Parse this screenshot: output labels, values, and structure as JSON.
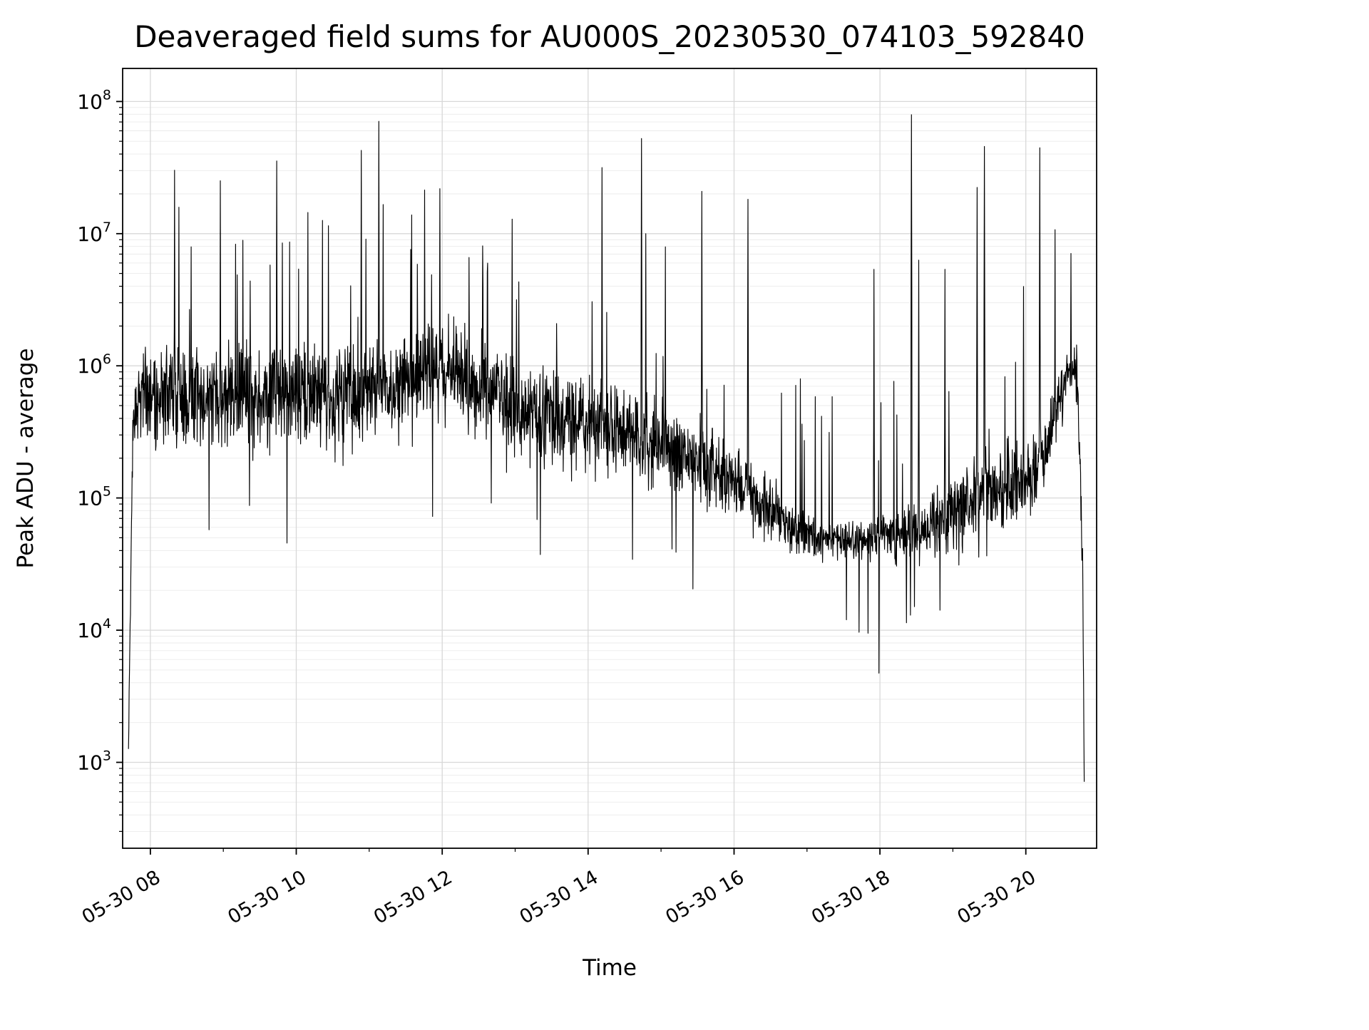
{
  "chart_data": {
    "type": "line",
    "title": "Deaveraged field sums for AU000S_20230530_074103_592840",
    "xlabel": "Time",
    "ylabel": "Peak ADU - average",
    "y_scale": "log10",
    "x_unit": "hours of day on 2023-05-30",
    "xlim": [
      7.62,
      20.97
    ],
    "ylim_log10": [
      2.35,
      8.25
    ],
    "grid": "both-major-and-minor",
    "legend": "none",
    "line_color": "#000000",
    "grid_major_color": "#d8d8d8",
    "grid_minor_color": "#ebebeb",
    "background": "#ffffff",
    "x_ticks": [
      {
        "value": 8,
        "label": "05-30 08"
      },
      {
        "value": 10,
        "label": "05-30 10"
      },
      {
        "value": 12,
        "label": "05-30 12"
      },
      {
        "value": 14,
        "label": "05-30 14"
      },
      {
        "value": 16,
        "label": "05-30 16"
      },
      {
        "value": 18,
        "label": "05-30 18"
      },
      {
        "value": 20,
        "label": "05-30 20"
      }
    ],
    "y_ticks": [
      {
        "base": "10",
        "exp": "3"
      },
      {
        "base": "10",
        "exp": "4"
      },
      {
        "base": "10",
        "exp": "5"
      },
      {
        "base": "10",
        "exp": "6"
      },
      {
        "base": "10",
        "exp": "7"
      },
      {
        "base": "10",
        "exp": "8"
      }
    ],
    "series": {
      "name": "deaveraged-field-sums",
      "description": "dense noisy time series; values synthesized from trend envelope (t_hours, log10_median, log10_spread) plus explicit spike events (t_hours, log10_value)",
      "points_per_hour": 220,
      "trend_log10": [
        [
          7.7,
          3.1,
          0.04
        ],
        [
          7.76,
          5.6,
          0.18
        ],
        [
          7.82,
          5.8,
          0.26
        ],
        [
          8.2,
          5.8,
          0.32
        ],
        [
          9.0,
          5.73,
          0.33
        ],
        [
          10.0,
          5.76,
          0.31
        ],
        [
          10.8,
          5.79,
          0.31
        ],
        [
          11.4,
          5.86,
          0.3
        ],
        [
          11.95,
          5.97,
          0.26
        ],
        [
          12.4,
          5.88,
          0.28
        ],
        [
          12.9,
          5.74,
          0.3
        ],
        [
          13.3,
          5.62,
          0.29
        ],
        [
          13.9,
          5.57,
          0.26
        ],
        [
          14.4,
          5.51,
          0.26
        ],
        [
          14.95,
          5.4,
          0.24
        ],
        [
          15.45,
          5.27,
          0.24
        ],
        [
          15.95,
          5.13,
          0.22
        ],
        [
          16.35,
          5.0,
          0.21
        ],
        [
          16.75,
          4.78,
          0.15
        ],
        [
          17.15,
          4.7,
          0.12
        ],
        [
          17.65,
          4.68,
          0.12
        ],
        [
          18.15,
          4.71,
          0.15
        ],
        [
          18.6,
          4.76,
          0.19
        ],
        [
          19.0,
          4.88,
          0.23
        ],
        [
          19.4,
          5.05,
          0.25
        ],
        [
          19.8,
          5.1,
          0.26
        ],
        [
          20.1,
          5.17,
          0.24
        ],
        [
          20.38,
          5.58,
          0.2
        ],
        [
          20.58,
          5.97,
          0.16
        ],
        [
          20.7,
          5.92,
          0.22
        ],
        [
          20.78,
          4.5,
          0.1
        ],
        [
          20.8,
          2.85,
          0.04
        ]
      ],
      "spikes_log10": [
        [
          8.33,
          7.48
        ],
        [
          8.39,
          7.2
        ],
        [
          8.56,
          6.9
        ],
        [
          8.96,
          7.4
        ],
        [
          9.17,
          6.92
        ],
        [
          9.27,
          6.95
        ],
        [
          9.73,
          7.55
        ],
        [
          9.81,
          6.93
        ],
        [
          10.16,
          7.16
        ],
        [
          10.36,
          7.1
        ],
        [
          10.44,
          7.06
        ],
        [
          10.89,
          7.63
        ],
        [
          11.13,
          7.85
        ],
        [
          11.19,
          7.22
        ],
        [
          11.57,
          6.88
        ],
        [
          11.76,
          7.33
        ],
        [
          11.97,
          7.34
        ],
        [
          12.37,
          6.82
        ],
        [
          12.96,
          7.11
        ],
        [
          13.02,
          6.5
        ],
        [
          13.57,
          6.32
        ],
        [
          14.19,
          7.5
        ],
        [
          14.73,
          7.72
        ],
        [
          14.79,
          7.0
        ],
        [
          15.06,
          6.9
        ],
        [
          15.56,
          7.32
        ],
        [
          16.19,
          7.26
        ],
        [
          17.92,
          6.73
        ],
        [
          18.43,
          7.9
        ],
        [
          18.53,
          6.8
        ],
        [
          18.89,
          6.73
        ],
        [
          19.33,
          7.35
        ],
        [
          19.43,
          7.66
        ],
        [
          19.97,
          6.6
        ],
        [
          20.19,
          7.65
        ],
        [
          20.4,
          7.03
        ],
        [
          20.62,
          6.85
        ]
      ]
    }
  }
}
